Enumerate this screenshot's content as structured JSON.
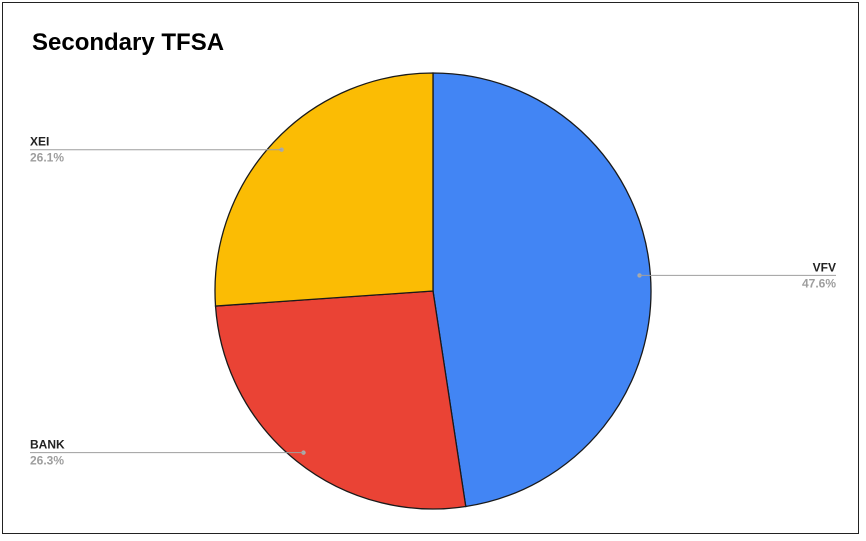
{
  "chart_data": {
    "type": "pie",
    "title": "Secondary TFSA",
    "slices": [
      {
        "label": "VFV",
        "value": 47.6,
        "value_label": "47.6%",
        "color": "#4285F4"
      },
      {
        "label": "BANK",
        "value": 26.3,
        "value_label": "26.3%",
        "color": "#EA4335"
      },
      {
        "label": "XEI",
        "value": 26.1,
        "value_label": "26.1%",
        "color": "#FBBC04"
      }
    ],
    "start_angle": "12 o'clock, clockwise",
    "legend": "labeled callouts beside slices"
  }
}
